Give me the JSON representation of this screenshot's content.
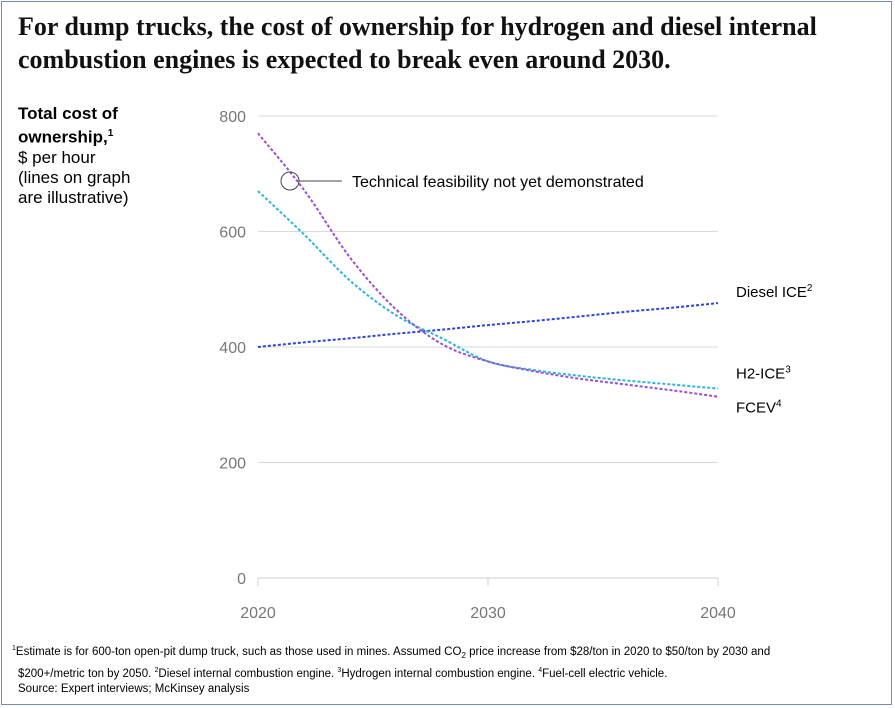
{
  "title": "For dump trucks, the cost of ownership for hydrogen and diesel internal combustion engines is expected to break even around 2030.",
  "ylabel": {
    "line1": "Total cost of",
    "line2": "ownership,",
    "line2_sup": "1",
    "line3": "$ per hour",
    "line4": "(lines on graph",
    "line5": "are illustrative)"
  },
  "annotation": "Technical feasibility not yet demonstrated",
  "footnotes": {
    "n1_sup": "1",
    "n1": "Estimate is for 600-ton open-pit dump truck, such as those used in mines. Assumed CO",
    "n1_sub": "2",
    "n1_b": " price increase from $28/ton in 2020 to $50/ton by 2030 and",
    "n1_c": "$200+/metric ton by 2050. ",
    "n2_sup": "2",
    "n2": "Diesel internal combustion engine. ",
    "n3_sup": "3",
    "n3": "Hydrogen internal combustion engine. ",
    "n4_sup": "4",
    "n4": "Fuel-cell electric vehicle.",
    "source": "Source: Expert interviews; McKinsey analysis"
  },
  "chart_data": {
    "type": "line",
    "title": "For dump trucks, the cost of ownership for hydrogen and diesel internal combustion engines is expected to break even around 2030.",
    "ylabel": "Total cost of ownership, $ per hour",
    "xlim": [
      2020,
      2040
    ],
    "ylim": [
      0,
      800
    ],
    "x_ticks": [
      2020,
      2030,
      2040
    ],
    "y_ticks": [
      0,
      200,
      400,
      600,
      800
    ],
    "grid": true,
    "x": [
      2020,
      2022,
      2024,
      2026,
      2028,
      2030,
      2032,
      2034,
      2036,
      2038,
      2040
    ],
    "series": [
      {
        "name": "Diesel ICE",
        "sup": "2",
        "color": "#2c44d8",
        "values": [
          400,
          408,
          415,
          423,
          430,
          438,
          445,
          453,
          461,
          468,
          476
        ]
      },
      {
        "name": "H2-ICE",
        "sup": "3",
        "color": "#29b5e0",
        "values": [
          670,
          595,
          515,
          455,
          415,
          375,
          360,
          350,
          342,
          335,
          328
        ]
      },
      {
        "name": "FCEV",
        "sup": "4",
        "color": "#9b4fd1",
        "values": [
          770,
          672,
          555,
          465,
          405,
          375,
          358,
          345,
          335,
          325,
          314
        ]
      }
    ]
  }
}
